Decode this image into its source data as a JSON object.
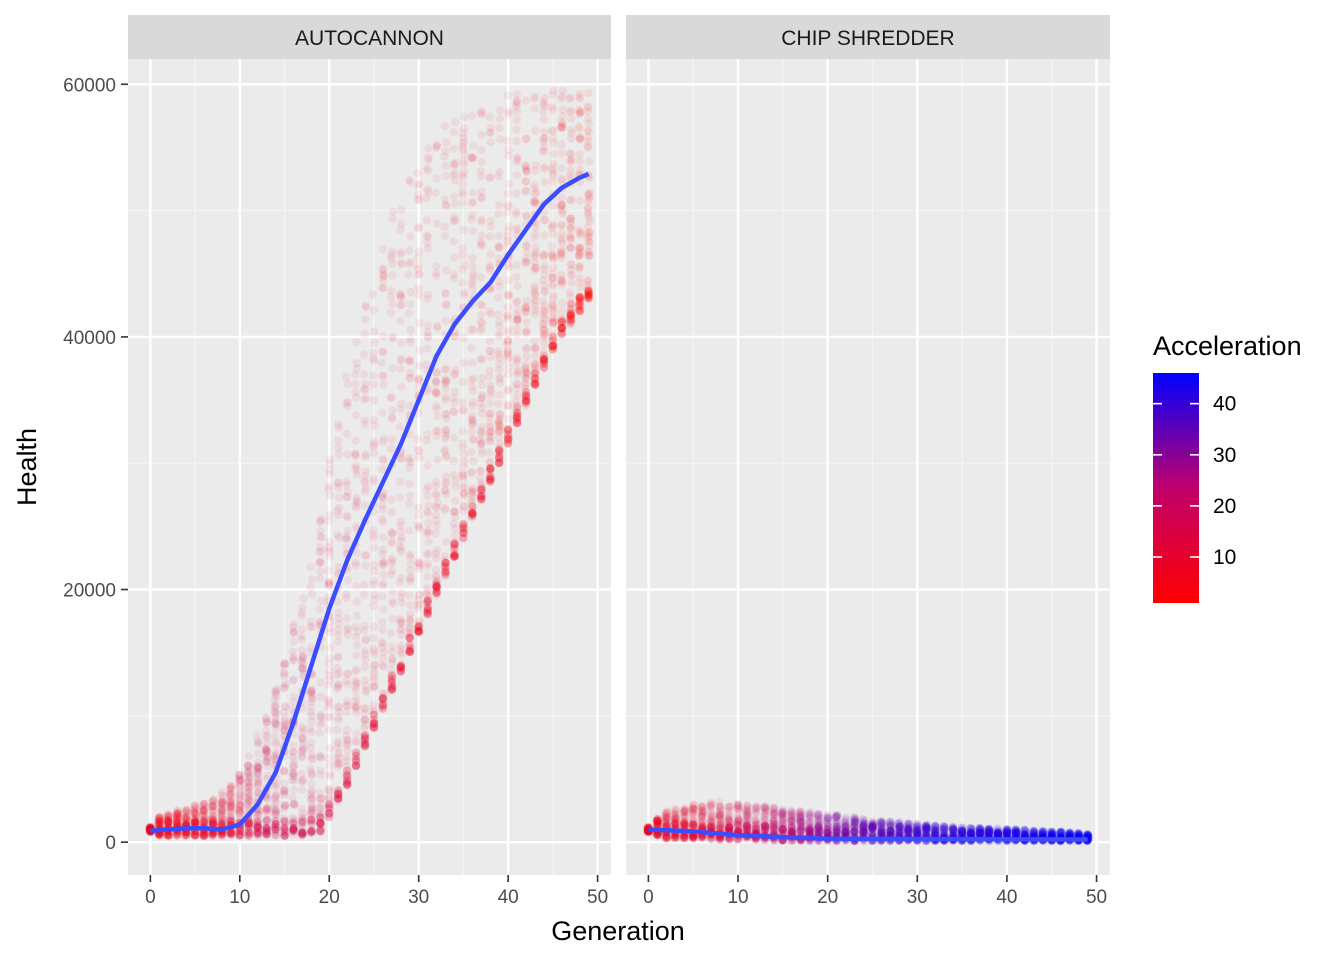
{
  "chart_data": {
    "type": "scatter",
    "overlay": "smooth-line",
    "ylabel": "Health",
    "xlabel": "Generation",
    "xlim": [
      -2.5,
      51.5
    ],
    "ylim": [
      -2600,
      62000
    ],
    "x_ticks": [
      0,
      10,
      20,
      30,
      40,
      50
    ],
    "x_tick_labels": [
      "0",
      "10",
      "20",
      "30",
      "40",
      "50"
    ],
    "y_ticks": [
      0,
      20000,
      40000,
      60000
    ],
    "y_tick_labels": [
      "0",
      "20000",
      "40000",
      "60000"
    ],
    "grid": true,
    "legend": {
      "title": "Acceleration",
      "placement": "right",
      "type": "colorbar",
      "range": [
        1,
        46
      ],
      "ticks": [
        10,
        20,
        30,
        40
      ],
      "tick_labels": [
        "10",
        "20",
        "30",
        "40"
      ],
      "low_color": "#ff0000",
      "high_color": "#0000ff"
    },
    "panels": [
      {
        "strip": "AUTOCANNON",
        "smooth_line": {
          "color": "#3b4dff",
          "x": [
            0,
            2,
            4,
            6,
            8,
            10,
            12,
            14,
            16,
            18,
            20,
            22,
            24,
            26,
            28,
            30,
            32,
            34,
            36,
            38,
            40,
            42,
            44,
            46,
            48,
            49
          ],
          "y": [
            900,
            1000,
            1100,
            1100,
            1000,
            1400,
            3000,
            5500,
            9500,
            14000,
            18500,
            22300,
            25500,
            28500,
            31500,
            35000,
            38500,
            41000,
            42800,
            44300,
            46500,
            48500,
            50500,
            51800,
            52600,
            52900
          ]
        },
        "point_bands": [
          {
            "x": 0,
            "lo": 800,
            "hi": 1200,
            "accel": 8
          },
          {
            "x": 1,
            "lo": 500,
            "hi": 2000,
            "accel": 6
          },
          {
            "x": 3,
            "lo": 500,
            "hi": 2500,
            "accel": 6
          },
          {
            "x": 5,
            "lo": 500,
            "hi": 3000,
            "accel": 7
          },
          {
            "x": 7,
            "lo": 500,
            "hi": 3500,
            "accel": 8
          },
          {
            "x": 9,
            "lo": 500,
            "hi": 4500,
            "accel": 10
          },
          {
            "x": 11,
            "lo": 500,
            "hi": 7000,
            "accel": 14
          },
          {
            "x": 13,
            "lo": 500,
            "hi": 10000,
            "accel": 16
          },
          {
            "x": 15,
            "lo": 500,
            "hi": 15000,
            "accel": 17
          },
          {
            "x": 17,
            "lo": 500,
            "hi": 20000,
            "accel": 16
          },
          {
            "x": 19,
            "lo": 800,
            "hi": 27000,
            "accel": 14
          },
          {
            "x": 21,
            "lo": 3000,
            "hi": 34000,
            "accel": 12
          },
          {
            "x": 23,
            "lo": 6000,
            "hi": 40000,
            "accel": 11
          },
          {
            "x": 25,
            "lo": 9000,
            "hi": 45000,
            "accel": 10
          },
          {
            "x": 27,
            "lo": 12000,
            "hi": 50000,
            "accel": 9
          },
          {
            "x": 29,
            "lo": 15000,
            "hi": 53000,
            "accel": 8
          },
          {
            "x": 31,
            "lo": 18000,
            "hi": 55000,
            "accel": 8
          },
          {
            "x": 33,
            "lo": 21000,
            "hi": 57000,
            "accel": 7
          },
          {
            "x": 35,
            "lo": 24000,
            "hi": 58000,
            "accel": 7
          },
          {
            "x": 37,
            "lo": 27000,
            "hi": 58500,
            "accel": 6
          },
          {
            "x": 39,
            "lo": 30000,
            "hi": 59000,
            "accel": 6
          },
          {
            "x": 41,
            "lo": 33000,
            "hi": 59500,
            "accel": 5
          },
          {
            "x": 43,
            "lo": 36000,
            "hi": 59500,
            "accel": 4
          },
          {
            "x": 45,
            "lo": 39000,
            "hi": 59500,
            "accel": 3
          },
          {
            "x": 47,
            "lo": 41000,
            "hi": 59500,
            "accel": 2
          },
          {
            "x": 49,
            "lo": 43000,
            "hi": 59500,
            "accel": 1
          }
        ]
      },
      {
        "strip": "CHIP SHREDDER",
        "smooth_line": {
          "color": "#3b4dff",
          "x": [
            0,
            5,
            10,
            15,
            20,
            25,
            30,
            35,
            40,
            45,
            49
          ],
          "y": [
            1000,
            850,
            550,
            400,
            280,
            260,
            250,
            240,
            230,
            220,
            210
          ]
        },
        "point_bands": [
          {
            "x": 0,
            "lo": 800,
            "hi": 1200,
            "accel": 8
          },
          {
            "x": 2,
            "lo": 300,
            "hi": 2500,
            "accel": 8
          },
          {
            "x": 5,
            "lo": 300,
            "hi": 3000,
            "accel": 10
          },
          {
            "x": 8,
            "lo": 200,
            "hi": 3200,
            "accel": 14
          },
          {
            "x": 11,
            "lo": 200,
            "hi": 3000,
            "accel": 18
          },
          {
            "x": 14,
            "lo": 150,
            "hi": 2800,
            "accel": 22
          },
          {
            "x": 17,
            "lo": 100,
            "hi": 2500,
            "accel": 26
          },
          {
            "x": 20,
            "lo": 100,
            "hi": 2200,
            "accel": 30
          },
          {
            "x": 23,
            "lo": 100,
            "hi": 2000,
            "accel": 33
          },
          {
            "x": 26,
            "lo": 100,
            "hi": 1700,
            "accel": 36
          },
          {
            "x": 29,
            "lo": 100,
            "hi": 1500,
            "accel": 38
          },
          {
            "x": 32,
            "lo": 100,
            "hi": 1300,
            "accel": 40
          },
          {
            "x": 35,
            "lo": 100,
            "hi": 1200,
            "accel": 41
          },
          {
            "x": 38,
            "lo": 100,
            "hi": 1100,
            "accel": 42
          },
          {
            "x": 41,
            "lo": 100,
            "hi": 1000,
            "accel": 43
          },
          {
            "x": 44,
            "lo": 100,
            "hi": 900,
            "accel": 44
          },
          {
            "x": 47,
            "lo": 100,
            "hi": 800,
            "accel": 45
          },
          {
            "x": 49,
            "lo": 100,
            "hi": 700,
            "accel": 45
          }
        ]
      }
    ]
  }
}
